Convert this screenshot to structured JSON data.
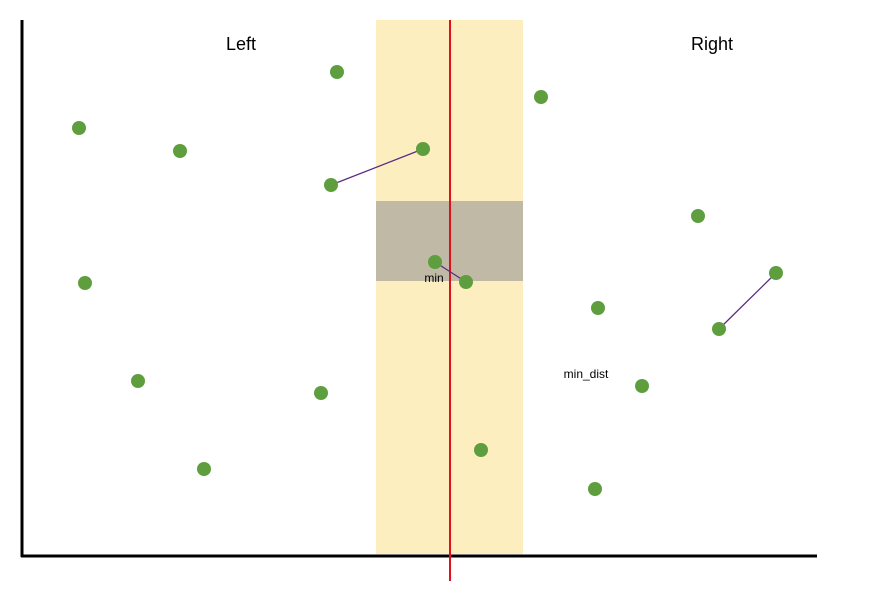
{
  "labels": {
    "left": "Left",
    "right": "Right",
    "min": "min",
    "min_dist": "min_dist"
  }
}
